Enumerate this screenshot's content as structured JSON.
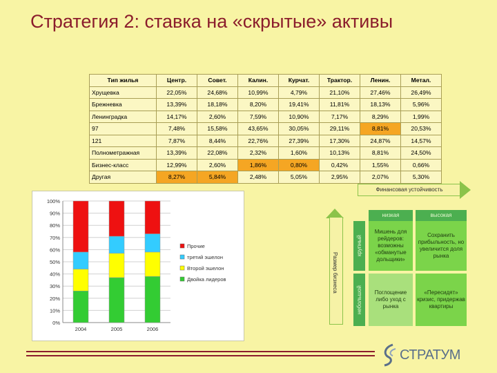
{
  "title": "Стратегия 2: ставка на «скрытые» активы",
  "table": {
    "headers": [
      "Тип жилья",
      "Центр.",
      "Совет.",
      "Калин.",
      "Курчат.",
      "Трактор.",
      "Ленин.",
      "Метал."
    ],
    "rows": [
      [
        "Хрущевка",
        "22,05%",
        "24,68%",
        "10,99%",
        "4,79%",
        "21,10%",
        "27,46%",
        "26,49%"
      ],
      [
        "Брежневка",
        "13,39%",
        "18,18%",
        "8,20%",
        "19,41%",
        "11,81%",
        "18,13%",
        "5,96%"
      ],
      [
        "Ленинградка",
        "14,17%",
        "2,60%",
        "7,59%",
        "10,90%",
        "7,17%",
        "8,29%",
        "1,99%"
      ],
      [
        "97",
        "7,48%",
        "15,58%",
        "43,65%",
        "30,05%",
        "29,11%",
        "8,81%",
        "20,53%"
      ],
      [
        "121",
        "7,87%",
        "8,44%",
        "22,76%",
        "27,39%",
        "17,30%",
        "24,87%",
        "14,57%"
      ],
      [
        "Полнометражная",
        "13,39%",
        "22,08%",
        "2,32%",
        "1,60%",
        "10,13%",
        "8,81%",
        "24,50%"
      ],
      [
        "Бизнес-класс",
        "12,99%",
        "2,60%",
        "1,86%",
        "0,80%",
        "0,42%",
        "1,55%",
        "0,66%"
      ],
      [
        "Другая",
        "8,27%",
        "5,84%",
        "2,48%",
        "5,05%",
        "2,95%",
        "2,07%",
        "5,30%"
      ]
    ],
    "highlight_color": "#f5a623"
  },
  "chart_data": {
    "type": "bar",
    "stacked": true,
    "percent": true,
    "categories": [
      "2004",
      "2005",
      "2006"
    ],
    "yticks": [
      "0%",
      "10%",
      "20%",
      "30%",
      "40%",
      "50%",
      "60%",
      "70%",
      "80%",
      "90%",
      "100%"
    ],
    "ylim": [
      0,
      100
    ],
    "series": [
      {
        "name": "Лидеры",
        "color": "#33cc33",
        "values": [
          26,
          37,
          38
        ]
      },
      {
        "name": "Второй эшелон",
        "color": "#ffff00",
        "values": [
          18,
          20,
          20
        ]
      },
      {
        "name": "Третий эшелон",
        "color": "#33ccff",
        "values": [
          14,
          14,
          15
        ]
      },
      {
        "name": "Прочие",
        "color": "#ee1111",
        "values": [
          42,
          29,
          27
        ]
      }
    ],
    "legend": [
      {
        "label": "Прочие",
        "color": "#ee1111"
      },
      {
        "label": "третий эшелон",
        "color": "#33ccff"
      },
      {
        "label": "Второй эшелон",
        "color": "#ffff00"
      },
      {
        "label": "Двойка лидеров",
        "color": "#33cc33"
      }
    ]
  },
  "matrix": {
    "top_arrow": "Финансовая устойчивость",
    "left_arrow": "Размер бизнеса",
    "col_low": "низкая",
    "col_high": "высокая",
    "row_large": "крупный",
    "row_small": "небольшой",
    "cell_tl": "Мишень для рейдеров: возможны «обманутые дольщики»",
    "cell_tr": "Сохранить прибыльность, но увеличится доля рынка",
    "cell_bl": "Поглощение либо уход с рынка",
    "cell_br": "«Пересидят» кризис, придержав квартиры"
  },
  "logo": {
    "text": "СТРАТУМ",
    "color": "#5a6f8a"
  }
}
